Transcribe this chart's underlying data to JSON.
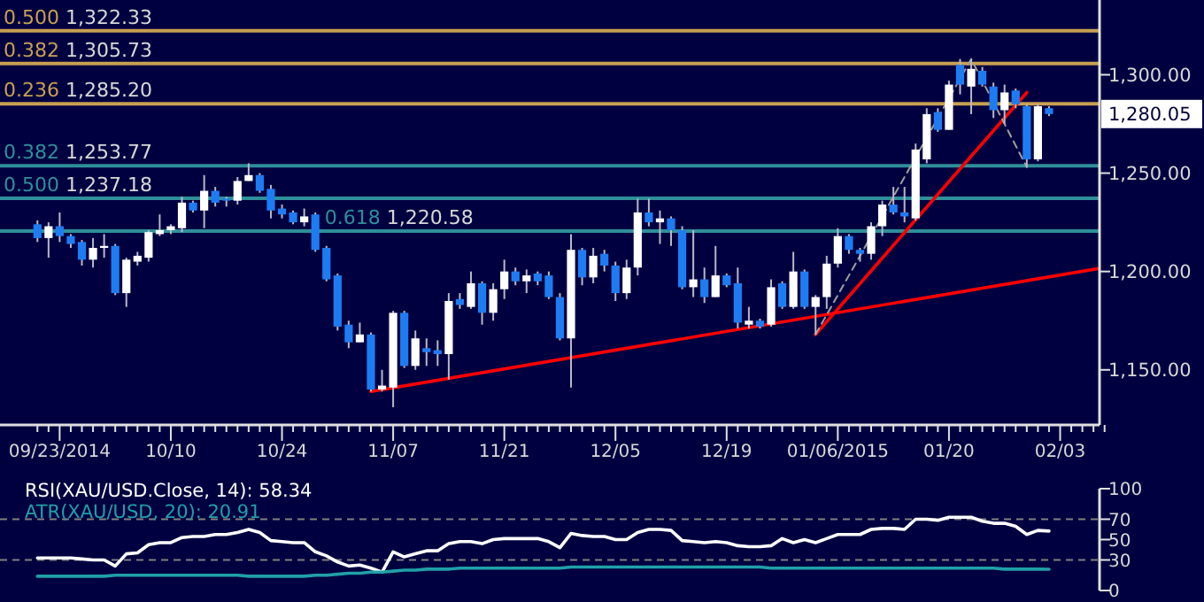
{
  "chart_data": [
    {
      "type": "candlestick",
      "categories": [
        null,
        null,
        "09/23/2014",
        null,
        null,
        null,
        null,
        null,
        null,
        null,
        null,
        null,
        "10/10",
        null,
        null,
        null,
        null,
        null,
        null,
        null,
        null,
        null,
        "10/24",
        null,
        null,
        null,
        null,
        null,
        null,
        null,
        null,
        null,
        "11/07",
        null,
        null,
        null,
        null,
        null,
        null,
        null,
        null,
        null,
        "11/21",
        null,
        null,
        null,
        null,
        null,
        null,
        null,
        null,
        null,
        "12/05",
        null,
        null,
        null,
        null,
        null,
        null,
        null,
        null,
        null,
        "12/19",
        null,
        null,
        null,
        null,
        null,
        null,
        null,
        null,
        null,
        "01/06/2015",
        null,
        null,
        null,
        null,
        null,
        null,
        null,
        null,
        null,
        "01/20",
        null,
        null,
        null,
        null,
        null,
        null,
        null,
        null,
        null,
        "02/03",
        null,
        null,
        null,
        null
      ],
      "ohlc": [
        [
          1224,
          1226,
          1215,
          1217
        ],
        [
          1217,
          1225,
          1207,
          1223
        ],
        [
          1223,
          1230,
          1215,
          1218
        ],
        [
          1218,
          1219,
          1212,
          1214
        ],
        [
          1215,
          1216,
          1203,
          1206
        ],
        [
          1206,
          1217,
          1202,
          1212
        ],
        [
          1212,
          1219,
          1207,
          1213
        ],
        [
          1213,
          1214,
          1188,
          1189
        ],
        [
          1189,
          1207,
          1182,
          1206
        ],
        [
          1205,
          1210,
          1203,
          1208
        ],
        [
          1207,
          1221,
          1205,
          1220
        ],
        [
          1219,
          1229,
          1218,
          1221
        ],
        [
          1221,
          1224,
          1219,
          1223
        ],
        [
          1222,
          1238,
          1220,
          1235
        ],
        [
          1235,
          1236,
          1230,
          1231
        ],
        [
          1231,
          1249,
          1222,
          1241
        ],
        [
          1241,
          1243,
          1233,
          1235
        ],
        [
          1237,
          1238,
          1233,
          1236
        ],
        [
          1236,
          1248,
          1234,
          1246
        ],
        [
          1246,
          1255,
          1246,
          1249
        ],
        [
          1249,
          1250,
          1240,
          1241
        ],
        [
          1242,
          1244,
          1227,
          1231
        ],
        [
          1232,
          1234,
          1227,
          1229
        ],
        [
          1230,
          1231,
          1224,
          1225
        ],
        [
          1225,
          1232,
          1223,
          1228
        ],
        [
          1229,
          1230,
          1210,
          1211
        ],
        [
          1212,
          1213,
          1195,
          1196
        ],
        [
          1198,
          1199,
          1170,
          1172
        ],
        [
          1173,
          1175,
          1161,
          1164
        ],
        [
          1164,
          1174,
          1164,
          1168
        ],
        [
          1168,
          1169,
          1139,
          1140
        ],
        [
          1140,
          1150,
          1139,
          1142
        ],
        [
          1141,
          1180,
          1131,
          1179
        ],
        [
          1179,
          1180,
          1151,
          1152
        ],
        [
          1152,
          1170,
          1150,
          1166
        ],
        [
          1161,
          1166,
          1152,
          1159
        ],
        [
          1160,
          1165,
          1152,
          1158
        ],
        [
          1158,
          1189,
          1145,
          1185
        ],
        [
          1186,
          1189,
          1181,
          1183
        ],
        [
          1182,
          1200,
          1181,
          1194
        ],
        [
          1194,
          1195,
          1173,
          1179
        ],
        [
          1179,
          1194,
          1175,
          1191
        ],
        [
          1191,
          1206,
          1186,
          1200
        ],
        [
          1200,
          1202,
          1193,
          1195
        ],
        [
          1195,
          1201,
          1189,
          1198
        ],
        [
          1199,
          1200,
          1193,
          1195
        ],
        [
          1198,
          1200,
          1186,
          1187
        ],
        [
          1187,
          1189,
          1165,
          1166
        ],
        [
          1166,
          1219,
          1141,
          1211
        ],
        [
          1211,
          1212,
          1193,
          1197
        ],
        [
          1197,
          1212,
          1194,
          1208
        ],
        [
          1209,
          1211,
          1200,
          1203
        ],
        [
          1203,
          1205,
          1185,
          1189
        ],
        [
          1189,
          1206,
          1186,
          1202
        ],
        [
          1202,
          1237,
          1198,
          1230
        ],
        [
          1230,
          1237,
          1223,
          1225
        ],
        [
          1225,
          1231,
          1214,
          1227
        ],
        [
          1227,
          1228,
          1213,
          1221
        ],
        [
          1221,
          1223,
          1191,
          1192
        ],
        [
          1192,
          1221,
          1187,
          1196
        ],
        [
          1196,
          1202,
          1184,
          1187
        ],
        [
          1187,
          1213,
          1187,
          1198
        ],
        [
          1198,
          1199,
          1192,
          1193
        ],
        [
          1194,
          1202,
          1171,
          1174
        ],
        [
          1173,
          1182,
          1171,
          1175
        ],
        [
          1175,
          1176,
          1171,
          1172
        ],
        [
          1173,
          1196,
          1172,
          1192
        ],
        [
          1194,
          1195,
          1181,
          1182
        ],
        [
          1182,
          1210,
          1181,
          1200
        ],
        [
          1200,
          1201,
          1181,
          1182
        ],
        [
          1182,
          1188,
          1168,
          1187
        ],
        [
          1187,
          1208,
          1181,
          1204
        ],
        [
          1204,
          1222,
          1202,
          1218
        ],
        [
          1218,
          1219,
          1209,
          1211
        ],
        [
          1211,
          1212,
          1205,
          1209
        ],
        [
          1209,
          1225,
          1206,
          1223
        ],
        [
          1223,
          1236,
          1218,
          1234
        ],
        [
          1234,
          1243,
          1229,
          1230
        ],
        [
          1230,
          1243,
          1225,
          1228
        ],
        [
          1227,
          1265,
          1226,
          1262
        ],
        [
          1257,
          1283,
          1255,
          1280
        ],
        [
          1281,
          1283,
          1271,
          1272
        ],
        [
          1272,
          1297,
          1272,
          1295
        ],
        [
          1305,
          1308,
          1290,
          1295
        ],
        [
          1294,
          1308,
          1280,
          1303
        ],
        [
          1302,
          1304,
          1294,
          1295
        ],
        [
          1294,
          1296,
          1278,
          1282
        ],
        [
          1282,
          1295,
          1275,
          1291
        ],
        [
          1292,
          1293,
          1283,
          1285
        ],
        [
          1284,
          1285,
          1253,
          1257
        ],
        [
          1257,
          1285,
          1256,
          1284
        ],
        [
          1283,
          1284,
          1279,
          1280.05
        ],
        null,
        null,
        null,
        null,
        null
      ],
      "series": [
        {
          "type": "line",
          "color": "#ff0000",
          "values": [
            null,
            null,
            null,
            null,
            null,
            null,
            null,
            null,
            null,
            null,
            null,
            null,
            null,
            null,
            null,
            null,
            null,
            null,
            null,
            null,
            null,
            null,
            null,
            null,
            null,
            null,
            null,
            null,
            null,
            null,
            1139,
            null,
            null,
            null,
            null,
            null,
            null,
            null,
            null,
            null,
            null,
            null,
            null,
            null,
            null,
            null,
            null,
            null,
            null,
            null,
            null,
            null,
            null,
            null,
            null,
            null,
            null,
            null,
            null,
            null,
            null,
            null,
            null,
            null,
            null,
            null,
            null,
            null,
            null,
            null,
            null,
            null,
            null,
            null,
            null,
            null,
            null,
            null,
            null,
            null,
            null,
            null,
            null,
            null,
            null,
            null,
            null,
            null,
            null,
            null,
            null,
            null,
            null,
            null,
            null,
            null,
            1202
          ]
        },
        {
          "type": "line",
          "color": "#ff0000",
          "values": [
            null,
            null,
            null,
            null,
            null,
            null,
            null,
            null,
            null,
            null,
            null,
            null,
            null,
            null,
            null,
            null,
            null,
            null,
            null,
            null,
            null,
            null,
            null,
            null,
            null,
            null,
            null,
            null,
            null,
            null,
            null,
            null,
            null,
            null,
            null,
            null,
            null,
            null,
            null,
            null,
            null,
            null,
            null,
            null,
            null,
            null,
            null,
            null,
            null,
            null,
            null,
            null,
            null,
            null,
            null,
            null,
            null,
            null,
            null,
            null,
            null,
            null,
            null,
            null,
            null,
            null,
            null,
            null,
            null,
            null,
            1168,
            null,
            null,
            null,
            null,
            null,
            null,
            null,
            null,
            null,
            null,
            null,
            null,
            null,
            null,
            null,
            null,
            null,
            null,
            1291,
            null,
            null,
            null,
            null,
            null,
            null,
            null
          ]
        },
        {
          "type": "line",
          "color": "#a0a0a0",
          "line_style": "dashed",
          "values": [
            null,
            null,
            null,
            null,
            null,
            null,
            null,
            null,
            null,
            null,
            null,
            null,
            null,
            null,
            null,
            null,
            null,
            null,
            null,
            null,
            null,
            null,
            null,
            null,
            null,
            null,
            null,
            null,
            null,
            null,
            null,
            null,
            null,
            null,
            null,
            null,
            null,
            null,
            null,
            null,
            null,
            null,
            null,
            null,
            null,
            null,
            null,
            null,
            null,
            null,
            null,
            null,
            null,
            null,
            null,
            null,
            null,
            null,
            null,
            null,
            null,
            null,
            null,
            null,
            null,
            null,
            null,
            null,
            null,
            null,
            1168,
            null,
            null,
            null,
            null,
            null,
            null,
            null,
            null,
            null,
            null,
            null,
            null,
            null,
            1308,
            null,
            null,
            null,
            null,
            1253,
            null,
            null,
            null,
            null,
            null,
            null,
            null
          ]
        }
      ],
      "ylim": [
        1122,
        1338
      ],
      "yticks": [
        {
          "value": 1150,
          "label": "1,150.00"
        },
        {
          "value": 1200,
          "label": "1,200.00"
        },
        {
          "value": 1250,
          "label": "1,250.00"
        },
        {
          "value": 1300,
          "label": "1,300.00"
        }
      ],
      "ref_lines": [
        {
          "axis": "y",
          "value": 1253.77,
          "label": "0.382 1,253.77",
          "color": "#2f8f9a"
        },
        {
          "axis": "y",
          "value": 1237.18,
          "label": "0.500 1,237.18",
          "color": "#2f8f9a"
        },
        {
          "axis": "y",
          "value": 1220.58,
          "label": "0.618 1,220.58",
          "color": "#2f8f9a"
        },
        {
          "axis": "y",
          "value": 1285.2,
          "label": "0.236 1,285.20",
          "color": "#c8a050"
        },
        {
          "axis": "y",
          "value": 1305.73,
          "label": "0.382 1,305.73",
          "color": "#c8a050"
        },
        {
          "axis": "y",
          "value": 1322.33,
          "label": "0.500 1,322.33",
          "color": "#c8a050"
        }
      ],
      "annotations": [
        "1,280.05"
      ]
    },
    {
      "type": "line",
      "categories": [
        null,
        null,
        null,
        null,
        null,
        null,
        null,
        null,
        null,
        null,
        null,
        null,
        null,
        null,
        null,
        null,
        null,
        null,
        null,
        null,
        null,
        null,
        null,
        null,
        null,
        null,
        null,
        null,
        null,
        null,
        null,
        null,
        null,
        null,
        null,
        null,
        null,
        null,
        null,
        null,
        null,
        null,
        null,
        null,
        null,
        null,
        null,
        null,
        null,
        null,
        null,
        null,
        null,
        null,
        null,
        null,
        null,
        null,
        null,
        null,
        null,
        null,
        null,
        null,
        null,
        null,
        null,
        null,
        null,
        null,
        null,
        null,
        null,
        null,
        null,
        null,
        null,
        null,
        null,
        null,
        null,
        null,
        null,
        null,
        null,
        null,
        null,
        null,
        null,
        null,
        null,
        null,
        null,
        null,
        null,
        null,
        null
      ],
      "series": [
        {
          "name": "RSI(XAU/USD.Close, 14): 58.34",
          "color": "#ffffff",
          "values": [
            32,
            32,
            32,
            32,
            31,
            30,
            30,
            24,
            36,
            37,
            45,
            47,
            47,
            52,
            53,
            53,
            55,
            55,
            57,
            60,
            57,
            49,
            48,
            47,
            47,
            38,
            34,
            28,
            24,
            25,
            22,
            18,
            38,
            33,
            36,
            39,
            39,
            46,
            48,
            48,
            46,
            50,
            51,
            51,
            51,
            51,
            48,
            42,
            56,
            54,
            53,
            53,
            50,
            50,
            57,
            60,
            60,
            59,
            49,
            48,
            47,
            48,
            47,
            44,
            43,
            43,
            44,
            51,
            47,
            50,
            47,
            51,
            55,
            55,
            55,
            60,
            61,
            61,
            60,
            70,
            70,
            69,
            72,
            72,
            72,
            68,
            66,
            66,
            63,
            55,
            59,
            58.34,
            null,
            null,
            null,
            null,
            null
          ]
        },
        {
          "name": "ATR(XAU/USD, 20): 20.91",
          "color": "#20a0a8",
          "values": [
            14,
            14,
            14,
            14,
            14,
            14,
            14,
            15,
            15,
            15,
            15,
            15,
            15,
            15,
            15,
            15,
            15,
            15,
            15,
            14,
            14,
            14,
            14,
            14,
            14,
            15,
            15,
            16,
            17,
            17,
            18,
            18,
            19,
            20,
            20,
            21,
            21,
            21,
            22,
            22,
            22,
            22,
            22,
            22,
            22,
            22,
            22,
            22,
            23,
            23,
            23,
            23,
            23,
            23,
            23,
            23,
            23,
            23,
            23,
            23,
            23,
            23,
            23,
            23,
            23,
            23,
            22,
            22,
            22,
            22,
            22,
            22,
            22,
            22,
            22,
            22,
            22,
            22,
            22,
            22,
            22,
            22,
            22,
            22,
            22,
            22,
            22,
            21,
            21,
            21,
            21,
            20.91,
            null,
            null,
            null,
            null,
            null
          ]
        }
      ],
      "ylim": [
        0,
        100
      ],
      "yticks": [
        0,
        30,
        50,
        70,
        100
      ],
      "tick_labels": "y",
      "legend": "top left",
      "ref_lines": [
        {
          "axis": "y",
          "value": 70,
          "color": "#808080",
          "line_style": "dashed"
        },
        {
          "axis": "y",
          "value": 30,
          "color": "#808080",
          "line_style": "dashed"
        }
      ]
    }
  ]
}
